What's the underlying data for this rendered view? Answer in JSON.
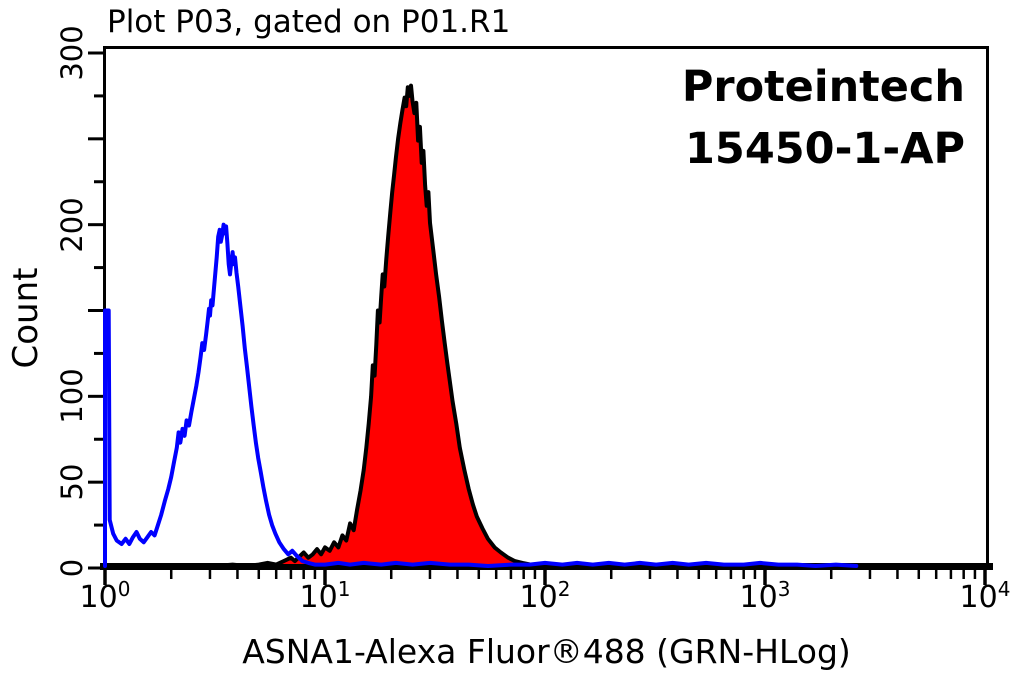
{
  "chart_data": {
    "type": "area",
    "subtype": "flow-cytometry-histogram-overlay",
    "title": "Plot P03, gated on P01.R1",
    "annotation": {
      "line1": "Proteintech",
      "line2": "15450-1-AP"
    },
    "xlabel": "ASNA1-Alexa Fluor®488 (GRN-HLog)",
    "ylabel": "Count",
    "x_scale": "log10",
    "xlim": [
      1,
      10000
    ],
    "ylim": [
      0,
      300
    ],
    "grid": false,
    "legend_position": "none",
    "colors": {
      "control_line": "#0000ff",
      "sample_fill": "#ff0000",
      "sample_outline": "#000000",
      "frame": "#000000",
      "background": "#ffffff"
    },
    "x_ticks": {
      "base": "10",
      "majors": [
        {
          "value": 1,
          "exp": "0"
        },
        {
          "value": 10,
          "exp": "1"
        },
        {
          "value": 100,
          "exp": "2"
        },
        {
          "value": 1000,
          "exp": "3"
        },
        {
          "value": 10000,
          "exp": "4"
        }
      ],
      "minor_multiples": [
        2,
        3,
        4,
        5,
        6,
        7,
        8,
        9
      ],
      "minor_decades": [
        1,
        10,
        100,
        1000
      ]
    },
    "y_ticks": {
      "step": 25,
      "major_every": 50,
      "labels": [
        {
          "value": 0,
          "text": "0"
        },
        {
          "value": 50,
          "text": "50"
        },
        {
          "value": 100,
          "text": "100"
        },
        {
          "value": 200,
          "text": "200"
        },
        {
          "value": 300,
          "text": "300"
        }
      ]
    },
    "series": [
      {
        "name": "control (open blue histogram)",
        "style": "open",
        "color": "#0000ff",
        "peak": {
          "x": 3.4,
          "count": 200
        },
        "points": [
          [
            1,
            0
          ],
          [
            1,
            150
          ],
          [
            1.04,
            150
          ],
          [
            1.05,
            28
          ],
          [
            1.09,
            20
          ],
          [
            1.13,
            16
          ],
          [
            1.19,
            14
          ],
          [
            1.24,
            17
          ],
          [
            1.29,
            14
          ],
          [
            1.34,
            18
          ],
          [
            1.39,
            21
          ],
          [
            1.44,
            17
          ],
          [
            1.5,
            15
          ],
          [
            1.56,
            18
          ],
          [
            1.62,
            21
          ],
          [
            1.68,
            19
          ],
          [
            1.74,
            25
          ],
          [
            1.8,
            31
          ],
          [
            1.87,
            39
          ],
          [
            1.94,
            46
          ],
          [
            2.0,
            53
          ],
          [
            2.06,
            62
          ],
          [
            2.12,
            70
          ],
          [
            2.16,
            79
          ],
          [
            2.2,
            73
          ],
          [
            2.25,
            81
          ],
          [
            2.3,
            77
          ],
          [
            2.35,
            86
          ],
          [
            2.41,
            83
          ],
          [
            2.47,
            91
          ],
          [
            2.53,
            98
          ],
          [
            2.6,
            106
          ],
          [
            2.66,
            114
          ],
          [
            2.72,
            123
          ],
          [
            2.77,
            131
          ],
          [
            2.82,
            127
          ],
          [
            2.88,
            136
          ],
          [
            2.93,
            144
          ],
          [
            2.97,
            151
          ],
          [
            3.0,
            147
          ],
          [
            3.04,
            156
          ],
          [
            3.08,
            153
          ],
          [
            3.12,
            161
          ],
          [
            3.17,
            171
          ],
          [
            3.22,
            181
          ],
          [
            3.27,
            193
          ],
          [
            3.32,
            197
          ],
          [
            3.36,
            190
          ],
          [
            3.41,
            194
          ],
          [
            3.46,
            200
          ],
          [
            3.51,
            195
          ],
          [
            3.55,
            199
          ],
          [
            3.6,
            189
          ],
          [
            3.65,
            177
          ],
          [
            3.7,
            171
          ],
          [
            3.75,
            178
          ],
          [
            3.8,
            184
          ],
          [
            3.85,
            177
          ],
          [
            3.9,
            181
          ],
          [
            3.96,
            172
          ],
          [
            4.03,
            164
          ],
          [
            4.12,
            153
          ],
          [
            4.22,
            141
          ],
          [
            4.32,
            128
          ],
          [
            4.42,
            117
          ],
          [
            4.52,
            106
          ],
          [
            4.63,
            94
          ],
          [
            4.74,
            83
          ],
          [
            4.85,
            73
          ],
          [
            4.97,
            64
          ],
          [
            5.1,
            56
          ],
          [
            5.25,
            47
          ],
          [
            5.4,
            39
          ],
          [
            5.57,
            31
          ],
          [
            5.75,
            25
          ],
          [
            5.95,
            20
          ],
          [
            6.2,
            15
          ],
          [
            6.5,
            11
          ],
          [
            6.8,
            8
          ],
          [
            7.1,
            10
          ],
          [
            7.45,
            7
          ],
          [
            7.9,
            4
          ],
          [
            8.4,
            3
          ],
          [
            9,
            2
          ],
          [
            10,
            2
          ],
          [
            11.5,
            3
          ],
          [
            13,
            2
          ],
          [
            15,
            3
          ],
          [
            18,
            2
          ],
          [
            21,
            3
          ],
          [
            25,
            2
          ],
          [
            30,
            3
          ],
          [
            37,
            2
          ],
          [
            45,
            2
          ],
          [
            55,
            1
          ],
          [
            70,
            2
          ],
          [
            85,
            2
          ],
          [
            100,
            3
          ],
          [
            120,
            2
          ],
          [
            140,
            3
          ],
          [
            165,
            2
          ],
          [
            195,
            3
          ],
          [
            230,
            2
          ],
          [
            270,
            3
          ],
          [
            320,
            2
          ],
          [
            380,
            3
          ],
          [
            450,
            2
          ],
          [
            540,
            3
          ],
          [
            650,
            2
          ],
          [
            800,
            2
          ],
          [
            950,
            3
          ],
          [
            1150,
            2
          ],
          [
            1400,
            2
          ],
          [
            1700,
            1
          ],
          [
            2100,
            2
          ],
          [
            2600,
            1
          ]
        ]
      },
      {
        "name": "ASNA1-Alexa Fluor 488 (filled red histogram)",
        "style": "filled",
        "color": "#ff0000",
        "outline": "#000000",
        "peak": {
          "x": 24,
          "count": 281
        },
        "points": [
          [
            2.6,
            1
          ],
          [
            3.2,
            1
          ],
          [
            3.8,
            2
          ],
          [
            4.4,
            1
          ],
          [
            5,
            2
          ],
          [
            5.5,
            3
          ],
          [
            6,
            2
          ],
          [
            6.5,
            4
          ],
          [
            7,
            6
          ],
          [
            7.3,
            4
          ],
          [
            7.7,
            7
          ],
          [
            8,
            9
          ],
          [
            8.4,
            6
          ],
          [
            8.8,
            8
          ],
          [
            9.2,
            11
          ],
          [
            9.6,
            8
          ],
          [
            10,
            12
          ],
          [
            10.5,
            10
          ],
          [
            11,
            15
          ],
          [
            11.5,
            12
          ],
          [
            12,
            19
          ],
          [
            12.5,
            16
          ],
          [
            13,
            26
          ],
          [
            13.5,
            22
          ],
          [
            14,
            34
          ],
          [
            14.5,
            45
          ],
          [
            15,
            57
          ],
          [
            15.4,
            70
          ],
          [
            15.8,
            84
          ],
          [
            16.2,
            100
          ],
          [
            16.5,
            118
          ],
          [
            16.8,
            112
          ],
          [
            17.1,
            130
          ],
          [
            17.4,
            150
          ],
          [
            17.7,
            143
          ],
          [
            18,
            158
          ],
          [
            18.3,
            171
          ],
          [
            18.6,
            164
          ],
          [
            19,
            180
          ],
          [
            19.4,
            194
          ],
          [
            19.8,
            207
          ],
          [
            20.2,
            219
          ],
          [
            20.6,
            229
          ],
          [
            21,
            239
          ],
          [
            21.5,
            250
          ],
          [
            22,
            259
          ],
          [
            22.5,
            267
          ],
          [
            23,
            274
          ],
          [
            23.4,
            269
          ],
          [
            23.8,
            280
          ],
          [
            24.2,
            275
          ],
          [
            24.6,
            281
          ],
          [
            25,
            272
          ],
          [
            25.5,
            265
          ],
          [
            26,
            271
          ],
          [
            26.5,
            249
          ],
          [
            27,
            257
          ],
          [
            27.5,
            236
          ],
          [
            28,
            243
          ],
          [
            28.5,
            223
          ],
          [
            29,
            211
          ],
          [
            29.5,
            219
          ],
          [
            30,
            201
          ],
          [
            31,
            186
          ],
          [
            32,
            171
          ],
          [
            33,
            158
          ],
          [
            34,
            144
          ],
          [
            35,
            131
          ],
          [
            36,
            119
          ],
          [
            37,
            108
          ],
          [
            38,
            97
          ],
          [
            39.5,
            84
          ],
          [
            41,
            70
          ],
          [
            43,
            57
          ],
          [
            45,
            46
          ],
          [
            47,
            37
          ],
          [
            49,
            30
          ],
          [
            52,
            23
          ],
          [
            55,
            17
          ],
          [
            59,
            12
          ],
          [
            63,
            9
          ],
          [
            68,
            6
          ],
          [
            73,
            4
          ],
          [
            79,
            3
          ],
          [
            86,
            2
          ],
          [
            95,
            1
          ],
          [
            105,
            0
          ]
        ]
      }
    ]
  }
}
